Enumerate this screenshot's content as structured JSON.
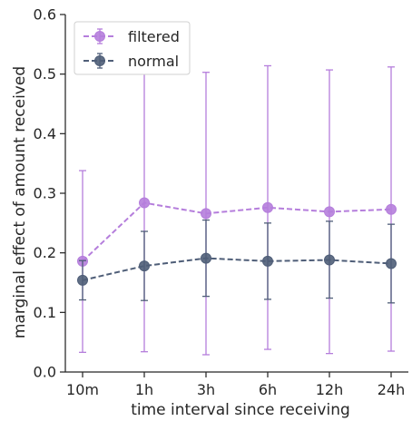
{
  "chart_data": {
    "type": "line",
    "title": "",
    "xlabel": "time interval since receiving",
    "ylabel": "marginal effect of amount received",
    "categories": [
      "10m",
      "1h",
      "3h",
      "6h",
      "12h",
      "24h"
    ],
    "ylim": [
      0.0,
      0.6
    ],
    "yticks": [
      0.0,
      0.1,
      0.2,
      0.3,
      0.4,
      0.5,
      0.6
    ],
    "ytick_labels": [
      "0.0",
      "0.1",
      "0.2",
      "0.3",
      "0.4",
      "0.5",
      "0.6"
    ],
    "grid": false,
    "legend_position": "top-left",
    "series": [
      {
        "name": "filtered",
        "color": "#b57edc",
        "line_style": "dashed",
        "marker": "circle",
        "values": [
          0.186,
          0.284,
          0.266,
          0.276,
          0.269,
          0.273
        ],
        "error_low": [
          0.033,
          0.034,
          0.029,
          0.038,
          0.031,
          0.035
        ],
        "error_high": [
          0.338,
          0.53,
          0.503,
          0.514,
          0.507,
          0.512
        ]
      },
      {
        "name": "normal",
        "color": "#4f5e78",
        "line_style": "dashed",
        "marker": "circle",
        "values": [
          0.154,
          0.178,
          0.191,
          0.186,
          0.188,
          0.182
        ],
        "error_low": [
          0.121,
          0.12,
          0.127,
          0.122,
          0.124,
          0.116
        ],
        "error_high": [
          0.187,
          0.236,
          0.255,
          0.25,
          0.253,
          0.248
        ]
      }
    ]
  }
}
